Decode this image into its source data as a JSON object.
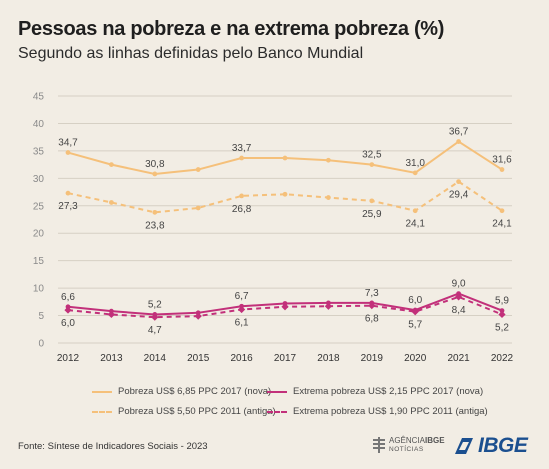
{
  "title": "Pessoas na pobreza e na extrema pobreza (%)",
  "subtitle": "Segundo as linhas definidas pelo Banco Mundial",
  "source": "Fonte: Síntese de Indicadores Sociais - 2023",
  "agencia": {
    "line1_light": "AGÊNCIA",
    "line1_bold": "IBGE",
    "line2": "NOTÍCIAS"
  },
  "ibge_logo": "IBGE",
  "chart_data": {
    "type": "line",
    "x": [
      "2012",
      "2013",
      "2014",
      "2015",
      "2016",
      "2017",
      "2018",
      "2019",
      "2020",
      "2021",
      "2022"
    ],
    "ylim": [
      0,
      45
    ],
    "yticks": [
      0,
      5,
      10,
      15,
      20,
      25,
      30,
      35,
      40,
      45
    ],
    "grid": true,
    "legend_position": "bottom",
    "series": [
      {
        "name": "Pobreza US$ 6,85 PPC 2017 (nova)",
        "color": "#f5c07a",
        "dashed": false,
        "marker": "circle",
        "values": [
          34.7,
          32.5,
          30.8,
          31.6,
          33.7,
          33.7,
          33.3,
          32.5,
          31.0,
          36.7,
          31.6
        ],
        "labels": {
          "0": "34,7",
          "2": "30,8",
          "4": "33,7",
          "7": "32,5",
          "8": "31,0",
          "9": "36,7",
          "10": "31,6"
        },
        "label_pos": "above"
      },
      {
        "name": "Pobreza US$ 5,50 PPC 2011 (antiga)",
        "color": "#f5c07a",
        "dashed": true,
        "marker": "circle",
        "values": [
          27.3,
          25.6,
          23.8,
          24.6,
          26.8,
          27.1,
          26.5,
          25.9,
          24.1,
          29.4,
          24.1
        ],
        "labels": {
          "0": "27,3",
          "2": "23,8",
          "4": "26,8",
          "7": "25,9",
          "8": "24,1",
          "9": "29,4",
          "10": "24,1"
        },
        "label_pos": "below"
      },
      {
        "name": "Extrema pobreza US$ 2,15 PPC 2017 (nova)",
        "color": "#c2307a",
        "dashed": false,
        "marker": "circle",
        "values": [
          6.6,
          5.8,
          5.2,
          5.5,
          6.7,
          7.2,
          7.3,
          7.3,
          6.0,
          9.0,
          5.9
        ],
        "labels": {
          "0": "6,6",
          "2": "5,2",
          "4": "6,7",
          "7": "7,3",
          "8": "6,0",
          "9": "9,0",
          "10": "5,9"
        },
        "label_pos": "above"
      },
      {
        "name": "Extrema pobreza US$ 1,90 PPC 2011 (antiga)",
        "color": "#c2307a",
        "dashed": true,
        "marker": "diamond",
        "values": [
          6.0,
          5.2,
          4.7,
          4.9,
          6.1,
          6.6,
          6.7,
          6.8,
          5.7,
          8.4,
          5.2
        ],
        "labels": {
          "0": "6,0",
          "2": "4,7",
          "4": "6,1",
          "7": "6,8",
          "8": "5,7",
          "9": "8,4",
          "10": "5,2"
        },
        "label_pos": "below"
      }
    ]
  }
}
